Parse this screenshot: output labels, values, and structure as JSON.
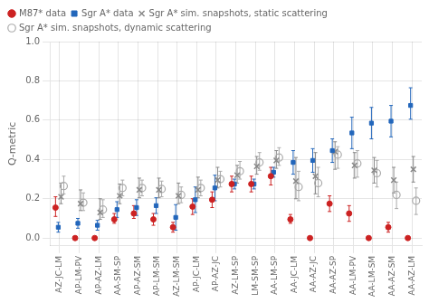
{
  "chart_data": {
    "type": "scatter",
    "categories": [
      "AZ-JC-LM",
      "AP-LM-PV",
      "AP-AZ-LM",
      "AA-SM-SP",
      "AP-AZ-SM",
      "AP-LM-SM",
      "AZ-LM-SM",
      "AP-JC-LM",
      "AP-AZ-JC",
      "AZ-LM-SP",
      "LM-SM-SP",
      "AA-LM-SP",
      "AA-JC-LM",
      "AA-AZ-JC",
      "AA-AZ-SP",
      "AA-LM-PV",
      "AA-LM-SM",
      "AA-AZ-SM",
      "AA-AZ-LM"
    ],
    "ylabel": "Q-metric",
    "ylim": [
      -0.04,
      1.0
    ],
    "yticks": [
      {
        "value": 0.0,
        "label": "0.0"
      },
      {
        "value": 0.2,
        "label": "0.2"
      },
      {
        "value": 0.4,
        "label": "0.4"
      },
      {
        "value": 0.6,
        "label": "0.6"
      },
      {
        "value": 0.8,
        "label": "0.8"
      },
      {
        "value": 1.0,
        "label": "1.0"
      }
    ],
    "grid": true,
    "legend": "upper left",
    "series": [
      {
        "name": "M87* data",
        "color": "#cc2222",
        "marker": "circle",
        "values": [
          0.155,
          0.0,
          0.0,
          0.095,
          0.125,
          0.095,
          0.055,
          0.16,
          0.195,
          0.275,
          0.275,
          0.315,
          0.095,
          0.0,
          0.175,
          0.125,
          0.0,
          0.055,
          0.0
        ],
        "err_lo": [
          0.045,
          0.0,
          0.0,
          0.02,
          0.025,
          0.03,
          0.025,
          0.04,
          0.04,
          0.04,
          0.04,
          0.045,
          0.02,
          0.0,
          0.04,
          0.04,
          0.0,
          0.025,
          0.0
        ],
        "err_hi": [
          0.055,
          0.0,
          0.0,
          0.03,
          0.04,
          0.03,
          0.025,
          0.04,
          0.04,
          0.04,
          0.04,
          0.045,
          0.025,
          0.0,
          0.04,
          0.04,
          0.0,
          0.025,
          0.0
        ]
      },
      {
        "name": "Sgr A* data",
        "color": "#2266bb",
        "marker": "square",
        "values": [
          0.055,
          0.075,
          0.065,
          0.145,
          0.155,
          0.165,
          0.105,
          0.195,
          0.255,
          0.275,
          0.275,
          0.335,
          0.385,
          0.395,
          0.445,
          0.535,
          0.585,
          0.595,
          0.675
        ],
        "err_lo": [
          0.025,
          0.025,
          0.025,
          0.04,
          0.04,
          0.04,
          0.065,
          0.065,
          0.065,
          0.025,
          0.025,
          0.025,
          0.06,
          0.06,
          0.06,
          0.08,
          0.08,
          0.08,
          0.07
        ],
        "err_hi": [
          0.025,
          0.025,
          0.025,
          0.04,
          0.04,
          0.04,
          0.065,
          0.065,
          0.065,
          0.025,
          0.025,
          0.025,
          0.06,
          0.06,
          0.06,
          0.08,
          0.08,
          0.08,
          0.09
        ]
      },
      {
        "name": "Sgr A* sim. snapshots, static scattering",
        "color": "#888888",
        "marker": "x",
        "values": [
          0.21,
          0.175,
          0.13,
          0.215,
          0.245,
          0.245,
          0.215,
          0.245,
          0.295,
          0.32,
          0.365,
          0.395,
          0.29,
          0.315,
          0.44,
          0.37,
          0.345,
          0.295,
          0.35
        ],
        "err_lo": [
          0.035,
          0.035,
          0.035,
          0.04,
          0.04,
          0.04,
          0.04,
          0.04,
          0.04,
          0.04,
          0.04,
          0.04,
          0.09,
          0.09,
          0.09,
          0.065,
          0.065,
          0.065,
          0.065
        ],
        "err_hi": [
          0.07,
          0.07,
          0.07,
          0.06,
          0.06,
          0.06,
          0.065,
          0.065,
          0.065,
          0.05,
          0.05,
          0.05,
          0.12,
          0.12,
          0.05,
          0.065,
          0.065,
          0.065,
          0.065
        ]
      },
      {
        "name": "Sgr A* sim. snapshots, dynamic scattering",
        "color": "#aaaaaa",
        "marker": "open_circle",
        "values": [
          0.265,
          0.18,
          0.145,
          0.255,
          0.255,
          0.25,
          0.22,
          0.255,
          0.3,
          0.34,
          0.385,
          0.41,
          0.26,
          0.28,
          0.425,
          0.38,
          0.33,
          0.22,
          0.19
        ],
        "err_lo": [
          0.04,
          0.04,
          0.04,
          0.04,
          0.04,
          0.04,
          0.04,
          0.04,
          0.04,
          0.04,
          0.04,
          0.04,
          0.07,
          0.07,
          0.07,
          0.07,
          0.07,
          0.07,
          0.07
        ],
        "err_hi": [
          0.05,
          0.05,
          0.05,
          0.04,
          0.04,
          0.04,
          0.04,
          0.04,
          0.04,
          0.05,
          0.05,
          0.05,
          0.08,
          0.08,
          0.04,
          0.065,
          0.065,
          0.065,
          0.065
        ]
      }
    ]
  }
}
